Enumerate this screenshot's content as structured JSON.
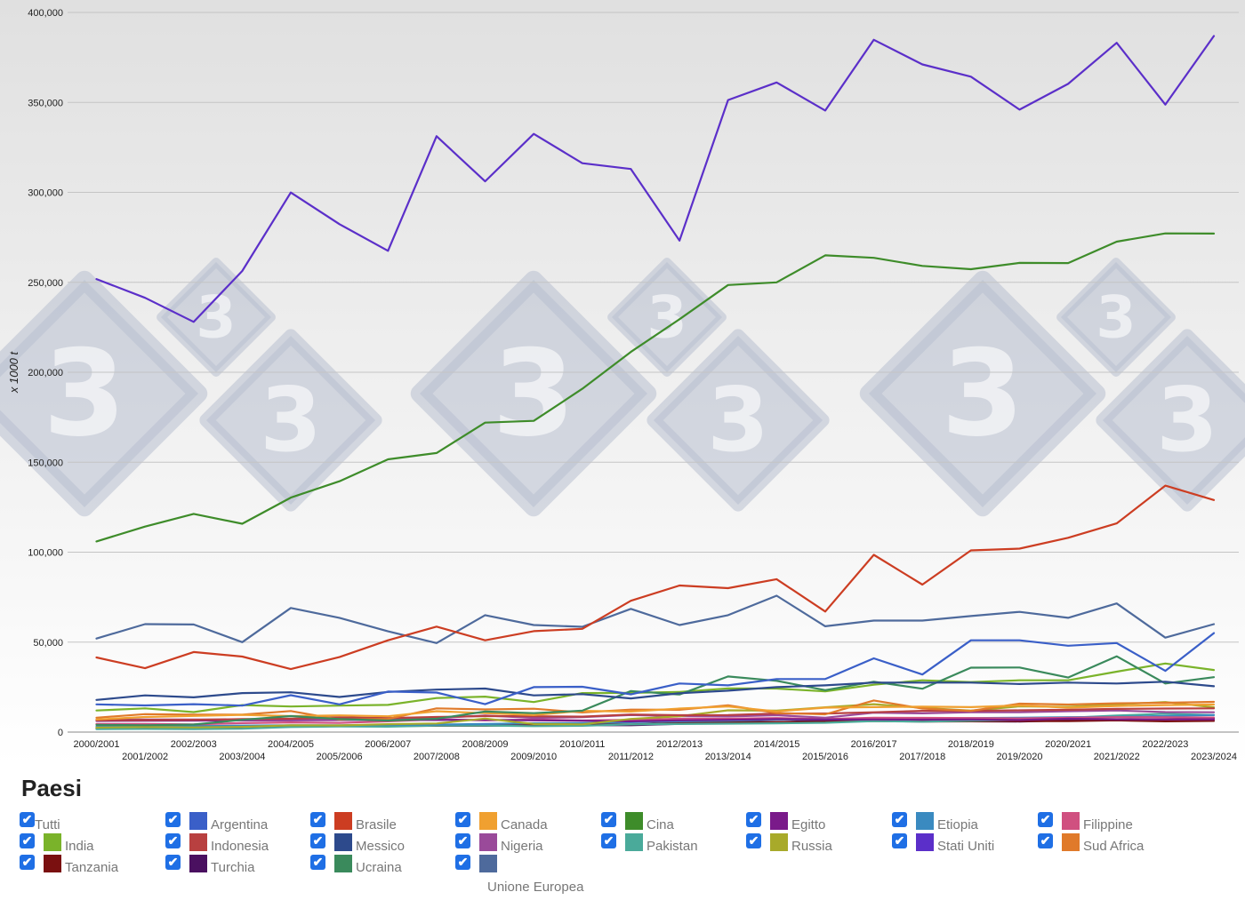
{
  "chart_data": {
    "type": "line",
    "title": "",
    "xlabel": "",
    "ylabel": "x 1000 t",
    "ylim": [
      0,
      400000
    ],
    "yticks": [
      "0",
      "50,000",
      "100,000",
      "150,000",
      "200,000",
      "250,000",
      "300,000",
      "350,000",
      "400,000"
    ],
    "yticks_values": [
      0,
      50000,
      100000,
      150000,
      200000,
      250000,
      300000,
      350000,
      400000
    ],
    "categories": [
      "2000/2001",
      "2001/2002",
      "2002/2003",
      "2003/2004",
      "2004/2005",
      "2005/2006",
      "2006/2007",
      "2007/2008",
      "2008/2009",
      "2009/2010",
      "2010/2011",
      "2011/2012",
      "2012/2013",
      "2013/2014",
      "2014/2015",
      "2015/2016",
      "2016/2017",
      "2017/2018",
      "2018/2019",
      "2019/2020",
      "2020/2021",
      "2021/2022",
      "2022/2023",
      "2023/2024"
    ],
    "series": [
      {
        "name": "Stati Uniti",
        "color": "#5b2fc9",
        "values": [
          251800,
          241400,
          228000,
          256300,
          299900,
          282300,
          267500,
          331200,
          306100,
          332500,
          316200,
          313000,
          273200,
          351300,
          361100,
          345500,
          384800,
          371100,
          364300,
          346000,
          360300,
          383100,
          348800,
          386900
        ]
      },
      {
        "name": "Cina",
        "color": "#3e8c2a",
        "values": [
          106000,
          114200,
          121300,
          115800,
          130300,
          139400,
          151600,
          155100,
          172000,
          173000,
          190800,
          211300,
          229500,
          248500,
          250000,
          265000,
          263600,
          259100,
          257300,
          260800,
          260700,
          272600,
          277200,
          277100
        ]
      },
      {
        "name": "Brasile",
        "color": "#cc3d22",
        "values": [
          41500,
          35500,
          44500,
          42000,
          35000,
          41700,
          51000,
          58600,
          51000,
          56100,
          57400,
          73000,
          81500,
          80000,
          85000,
          67000,
          98500,
          82000,
          101000,
          102000,
          108000,
          116000,
          137000,
          129000
        ]
      },
      {
        "name": "Unione Europea",
        "color": "#4e6a9c",
        "values": [
          52000,
          60000,
          59800,
          50000,
          69000,
          63500,
          56000,
          49500,
          65000,
          59500,
          58500,
          68500,
          59500,
          65000,
          75800,
          58800,
          62000,
          62000,
          64500,
          66800,
          63500,
          71500,
          52500,
          60000
        ]
      },
      {
        "name": "Argentina",
        "color": "#3a5fc8",
        "values": [
          15400,
          14800,
          15500,
          14700,
          20500,
          15400,
          22500,
          22000,
          15500,
          25000,
          25200,
          21000,
          27000,
          26000,
          29500,
          29500,
          41000,
          32000,
          51000,
          51000,
          48000,
          49500,
          34000,
          55000
        ]
      },
      {
        "name": "Messico",
        "color": "#2d4a8c",
        "values": [
          17900,
          20400,
          19300,
          21700,
          22100,
          19500,
          22300,
          23600,
          24200,
          20400,
          21100,
          18700,
          21600,
          23000,
          25000,
          26000,
          27500,
          27500,
          27500,
          26700,
          27500,
          27000,
          28000,
          25500
        ]
      },
      {
        "name": "Ucraina",
        "color": "#3a8a5c",
        "values": [
          4000,
          3800,
          4200,
          6800,
          8900,
          7200,
          6400,
          7400,
          11400,
          10500,
          11900,
          22800,
          20900,
          30900,
          28500,
          23300,
          28000,
          24100,
          35800,
          35900,
          30300,
          42100,
          27000,
          30500
        ]
      },
      {
        "name": "India",
        "color": "#7ab32a",
        "values": [
          12000,
          13200,
          11100,
          15000,
          14200,
          14700,
          15100,
          18900,
          19700,
          16700,
          21700,
          21800,
          22300,
          24300,
          24200,
          22600,
          26300,
          28800,
          27800,
          28800,
          28800,
          33600,
          38100,
          34500
        ]
      },
      {
        "name": "Canada",
        "color": "#f0a030",
        "values": [
          7000,
          8400,
          9000,
          9600,
          8900,
          9300,
          8800,
          11600,
          10500,
          9500,
          11800,
          11400,
          13100,
          14200,
          11500,
          13600,
          13900,
          14100,
          13900,
          14800,
          13600,
          14500,
          15000,
          15300
        ]
      },
      {
        "name": "Sud Africa",
        "color": "#e07a2a",
        "values": [
          8000,
          10000,
          9700,
          9700,
          11700,
          6900,
          7300,
          13200,
          12600,
          13000,
          10900,
          12500,
          12400,
          14900,
          10600,
          9900,
          17600,
          13100,
          11800,
          15800,
          15300,
          16000,
          16300,
          16800
        ]
      },
      {
        "name": "Indonesia",
        "color": "#b84040",
        "values": [
          6500,
          6700,
          6800,
          7200,
          7400,
          8200,
          7800,
          8400,
          8900,
          8800,
          8600,
          9800,
          9400,
          9500,
          10300,
          10300,
          11000,
          11800,
          11800,
          12100,
          12400,
          12900,
          13100,
          13200
        ]
      },
      {
        "name": "Russia",
        "color": "#a8aa2a",
        "values": [
          2500,
          2800,
          2600,
          2900,
          3800,
          3700,
          4400,
          4800,
          7500,
          4500,
          4300,
          7300,
          8800,
          12100,
          11900,
          13800,
          15500,
          13500,
          11900,
          14300,
          14000,
          15400,
          16700,
          13800
        ]
      },
      {
        "name": "Nigeria",
        "color": "#9a4a9a",
        "values": [
          7000,
          7000,
          7000,
          7000,
          7100,
          7100,
          7100,
          7800,
          9200,
          7900,
          8300,
          9500,
          8900,
          8700,
          9400,
          8000,
          10800,
          10400,
          11000,
          11000,
          11600,
          12000,
          11100,
          11000
        ]
      },
      {
        "name": "Egitto",
        "color": "#7a1a8a",
        "values": [
          6200,
          6300,
          6400,
          6500,
          6600,
          6700,
          6800,
          6700,
          6800,
          6500,
          6300,
          6000,
          6500,
          6800,
          7200,
          7000,
          7000,
          6900,
          7000,
          6700,
          7400,
          7100,
          7000,
          7100
        ]
      },
      {
        "name": "Filippine",
        "color": "#d05080",
        "values": [
          4500,
          4500,
          4300,
          5000,
          5400,
          5100,
          6000,
          7100,
          6500,
          7000,
          6400,
          6800,
          7400,
          7400,
          7800,
          7200,
          8000,
          7900,
          7800,
          7600,
          8000,
          8300,
          8200,
          8100
        ]
      },
      {
        "name": "Etiopia",
        "color": "#3a8ac0",
        "values": [
          3000,
          3100,
          3200,
          3600,
          3800,
          3800,
          4000,
          4200,
          4500,
          4900,
          5000,
          5500,
          6000,
          6300,
          6900,
          7100,
          7200,
          7500,
          7800,
          8000,
          8300,
          8500,
          9000,
          9500
        ]
      },
      {
        "name": "Pakistan",
        "color": "#4aaa9a",
        "values": [
          1700,
          1800,
          1700,
          1900,
          2800,
          3100,
          3000,
          3600,
          3600,
          3300,
          3500,
          4300,
          4500,
          4700,
          4900,
          5200,
          6100,
          5800,
          6300,
          6800,
          7900,
          9200,
          10200,
          9500
        ]
      },
      {
        "name": "Tanzania",
        "color": "#7a1010",
        "values": [
          2000,
          2500,
          3400,
          3000,
          3000,
          3300,
          3400,
          3500,
          3500,
          3700,
          4500,
          4300,
          5100,
          5400,
          5600,
          5800,
          6100,
          5900,
          6000,
          6100,
          6100,
          6500,
          6000,
          6200
        ]
      },
      {
        "name": "Turchia",
        "color": "#4a1060",
        "values": [
          2300,
          2200,
          2100,
          2300,
          3000,
          3300,
          3600,
          3500,
          4300,
          3800,
          3800,
          3800,
          4600,
          5900,
          5500,
          6400,
          6400,
          6300,
          6000,
          5900,
          6500,
          6600,
          7000,
          7500
        ]
      }
    ]
  },
  "legend": {
    "title": "Paesi",
    "items": [
      {
        "label": "Tutti",
        "color": ""
      },
      {
        "label": "Argentina",
        "color": "#3a5fc8"
      },
      {
        "label": "Brasile",
        "color": "#cc3d22"
      },
      {
        "label": "Canada",
        "color": "#f0a030"
      },
      {
        "label": "Cina",
        "color": "#3e8c2a"
      },
      {
        "label": "Egitto",
        "color": "#7a1a8a"
      },
      {
        "label": "Etiopia",
        "color": "#3a8ac0"
      },
      {
        "label": "Filippine",
        "color": "#d05080"
      },
      {
        "label": "India",
        "color": "#7ab32a"
      },
      {
        "label": "Indonesia",
        "color": "#b84040"
      },
      {
        "label": "Messico",
        "color": "#2d4a8c"
      },
      {
        "label": "Nigeria",
        "color": "#9a4a9a"
      },
      {
        "label": "Pakistan",
        "color": "#4aaa9a"
      },
      {
        "label": "Russia",
        "color": "#a8aa2a"
      },
      {
        "label": "Stati Uniti",
        "color": "#5b2fc9"
      },
      {
        "label": "Sud Africa",
        "color": "#e07a2a"
      },
      {
        "label": "Tanzania",
        "color": "#7a1010"
      },
      {
        "label": "Turchia",
        "color": "#4a1060"
      },
      {
        "label": "Ucraina",
        "color": "#3a8a5c"
      },
      {
        "label": "Unione Europea",
        "color": "#4e6a9c"
      }
    ]
  },
  "watermark": {
    "glyph": "3",
    "color": "#b8c0d0"
  }
}
